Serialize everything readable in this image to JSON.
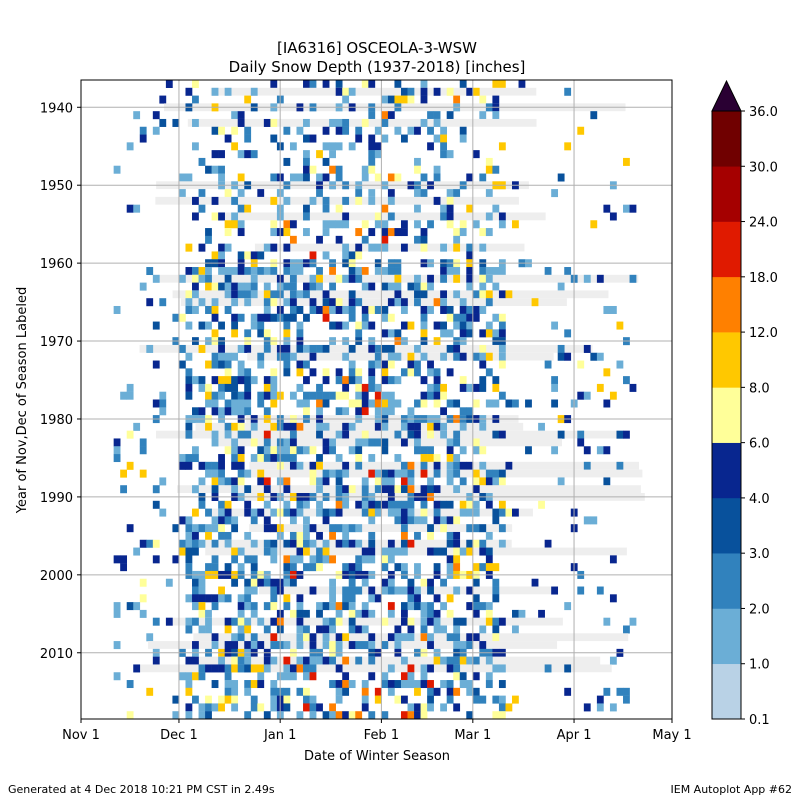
{
  "chart_data": {
    "type": "heatmap",
    "title": "[IA6316] OSCEOLA-3-WSW",
    "subtitle": "Daily Snow Depth (1937-2018) [inches]",
    "xlabel": "Date of Winter Season",
    "ylabel": "Year of Nov,Dec of Season Labeled",
    "x_ticks": [
      "Nov 1",
      "Dec 1",
      "Jan 1",
      "Feb 1",
      "Mar 1",
      "Apr 1",
      "May 1"
    ],
    "y_ticks": [
      "1940",
      "1950",
      "1960",
      "1970",
      "1980",
      "1990",
      "2000",
      "2010"
    ],
    "ylim": [
      1937,
      2018
    ],
    "grid": true,
    "colorbar": {
      "levels": [
        0.1,
        1.0,
        2.0,
        3.0,
        4.0,
        6.0,
        8.0,
        12.0,
        18.0,
        24.0,
        30.0,
        36.0
      ],
      "labels": [
        "0.1",
        "1.0",
        "2.0",
        "3.0",
        "4.0",
        "6.0",
        "8.0",
        "12.0",
        "18.0",
        "24.0",
        "30.0",
        "36.0"
      ],
      "colors": [
        "#b9d2e6",
        "#6baed6",
        "#3182bd",
        "#08519c",
        "#08268f",
        "#ffff99",
        "#ffc800",
        "#ff8000",
        "#e01a00",
        "#a50000",
        "#700000"
      ],
      "extend_color": "#2a0033",
      "missing_color": "#eeeeee"
    }
  },
  "footer": {
    "left": "Generated at 4 Dec 2018 10:21 PM CST in 2.49s",
    "right": "IEM Autoplot App #62"
  }
}
